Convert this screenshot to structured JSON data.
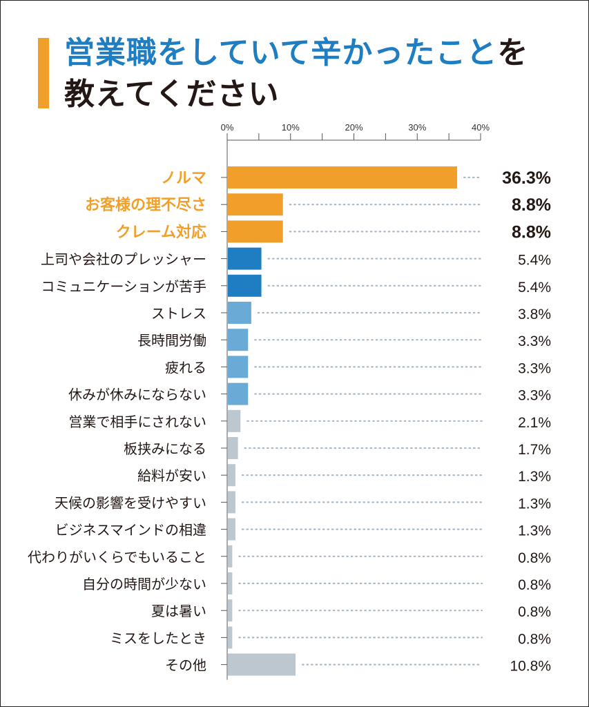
{
  "title": {
    "line1_highlight": "営業職をしていて辛かったこと",
    "line1_rest": "を",
    "line2": "教えてください"
  },
  "colors": {
    "accent_orange": "#f0a02a",
    "bar_blue": "#1f7dc2",
    "bar_light_blue": "#6aaad6",
    "bar_gray": "#bcc7d0",
    "title_blue": "#1f7dc2",
    "text_dark": "#231815",
    "leader_dots": "#a9b8c6"
  },
  "chart_data": {
    "type": "bar",
    "orientation": "horizontal",
    "xlim": [
      0,
      40
    ],
    "ticks": [
      "0%",
      "10%",
      "20%",
      "30%",
      "40%"
    ],
    "tick_values": [
      0,
      10,
      20,
      30,
      40
    ],
    "grid": false,
    "categories": [
      "ノルマ",
      "お客様の理不尽さ",
      "クレーム対応",
      "上司や会社のプレッシャー",
      "コミュニケーションが苦手",
      "ストレス",
      "長時間労働",
      "疲れる",
      "休みが休みにならない",
      "営業で相手にされない",
      "板挟みになる",
      "給料が安い",
      "天候の影響を受けやすい",
      "ビジネスマインドの相違",
      "代わりがいくらでもいること",
      "自分の時間が少ない",
      "夏は暑い",
      "ミスをしたとき",
      "その他"
    ],
    "values": [
      36.3,
      8.8,
      8.8,
      5.4,
      5.4,
      3.8,
      3.3,
      3.3,
      3.3,
      2.1,
      1.7,
      1.3,
      1.3,
      1.3,
      0.8,
      0.8,
      0.8,
      0.8,
      10.8
    ],
    "value_labels": [
      "36.3%",
      "8.8%",
      "8.8%",
      "5.4%",
      "5.4%",
      "3.8%",
      "3.3%",
      "3.3%",
      "3.3%",
      "2.1%",
      "1.7%",
      "1.3%",
      "1.3%",
      "1.3%",
      "0.8%",
      "0.8%",
      "0.8%",
      "0.8%",
      "10.8%"
    ],
    "groups": [
      "top",
      "top",
      "top",
      "second",
      "second",
      "third",
      "third",
      "third",
      "third",
      "rest",
      "rest",
      "rest",
      "rest",
      "rest",
      "rest",
      "rest",
      "rest",
      "rest",
      "rest"
    ]
  }
}
